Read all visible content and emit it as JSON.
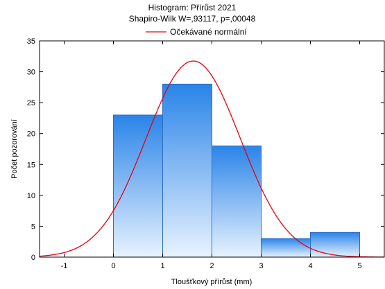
{
  "chart_data": {
    "type": "bar",
    "title": "Histogram: Přírůst 2021",
    "subtitle": "Shapiro-Wilk W=,93117, p=,00048",
    "legend": [
      {
        "name": "Očekávané normální",
        "color": "#e8000b",
        "type": "line"
      }
    ],
    "legend_placement": "top-center",
    "xlabel": "Tloušťkový přírůst (mm)",
    "ylabel": "Počet pozorování",
    "xlim": [
      -1.5,
      5.5
    ],
    "ylim": [
      0,
      35
    ],
    "xticks": [
      "-1",
      "0",
      "1",
      "2",
      "3",
      "4",
      "5"
    ],
    "yticks": [
      "0",
      "5",
      "10",
      "15",
      "20",
      "25",
      "30",
      "35"
    ],
    "bins": [
      {
        "x0": 0,
        "x1": 1,
        "count": 23
      },
      {
        "x0": 1,
        "x1": 2,
        "count": 28
      },
      {
        "x0": 2,
        "x1": 3,
        "count": 18
      },
      {
        "x0": 3,
        "x1": 4,
        "count": 3
      },
      {
        "x0": 4,
        "x1": 5,
        "count": 4
      }
    ],
    "normal_curve": {
      "mean": 1.62,
      "sd": 0.955,
      "n": 76,
      "bin_width": 1,
      "color": "#e8000b"
    },
    "grid": false,
    "colors": {
      "bar_top": "#2a84e8",
      "bar_bottom": "#e8f3ff",
      "bar_edge": "#2a6fc4",
      "axis": "#000000"
    }
  }
}
